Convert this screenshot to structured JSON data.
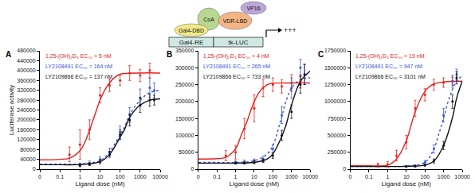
{
  "diagram": {
    "proteins": [
      "Gal4-DBD",
      "CoA",
      "VDR-LBD",
      "VP16"
    ],
    "elements": [
      "Gal4-RE",
      "tk-LUC"
    ],
    "output": "+++"
  },
  "chart_data": [
    {
      "type": "line",
      "title": "A",
      "xlabel": "Ligand dose (nM)",
      "ylabel": "Luciferase activity",
      "log": "x",
      "grid": false,
      "xlim": [
        0.01,
        10000
      ],
      "xticks": [
        {
          "value": 0.01,
          "label": "0"
        },
        0.1,
        1,
        10,
        100,
        1000,
        10000
      ],
      "ylim": [
        0,
        480000
      ],
      "yticks": [
        0,
        40000,
        80000,
        120000,
        160000,
        200000,
        240000,
        280000,
        320000,
        360000,
        400000,
        440000,
        480000
      ],
      "series": [
        {
          "type": "line",
          "name": "1,25-(OH)₂D₃",
          "ec50": "EC₅₀ = 5 nM",
          "color": "#e8201c",
          "line_style": "solid",
          "x": [
            0.01,
            0.1,
            0.3,
            1,
            2,
            5,
            10,
            20,
            50,
            100,
            1000,
            10000
          ],
          "values": [
            38000,
            40000,
            45000,
            75000,
            120000,
            210000,
            280000,
            330000,
            370000,
            385000,
            390000,
            390000
          ]
        },
        {
          "type": "line",
          "name": "LY2108491",
          "ec50": "EC₅₀ = 164 nM",
          "color": "#3a55d8",
          "line_style": "dot",
          "x": [
            0.01,
            0.1,
            1,
            10,
            30,
            100,
            164,
            300,
            1000,
            3000,
            10000
          ],
          "values": [
            20000,
            20000,
            21000,
            35000,
            70000,
            140000,
            170000,
            220000,
            280000,
            310000,
            320000
          ]
        },
        {
          "type": "line",
          "name": "LY2109866",
          "ec50": "EC₅₀ = 137 nM",
          "color": "#111111",
          "line_style": "solid",
          "x": [
            0.01,
            0.1,
            1,
            10,
            30,
            100,
            164,
            300,
            1000,
            3000,
            10000
          ],
          "values": [
            18000,
            18000,
            19000,
            30000,
            60000,
            130000,
            160000,
            210000,
            260000,
            280000,
            285000
          ]
        },
        {
          "type": "scatter",
          "color": "#e8201c",
          "marker": "circle",
          "x": [
            0.3,
            1,
            3,
            10,
            30,
            100,
            300,
            1000,
            3000
          ],
          "values": [
            60000,
            100000,
            160000,
            300000,
            340000,
            360000,
            390000,
            380000,
            400000
          ],
          "error": [
            30000,
            60000,
            40000,
            30000,
            25000,
            20000,
            30000,
            25000,
            30000
          ]
        },
        {
          "type": "scatter",
          "color": "#3a55d8",
          "marker": "circle",
          "x": [
            1,
            3,
            10,
            30,
            100,
            300,
            1000,
            3000,
            5000
          ],
          "values": [
            20000,
            25000,
            40000,
            70000,
            150000,
            220000,
            290000,
            330000,
            320000
          ],
          "error": [
            5000,
            8000,
            10000,
            15000,
            25000,
            30000,
            35000,
            40000,
            30000
          ]
        },
        {
          "type": "scatter",
          "color": "#111111",
          "marker": "circle",
          "x": [
            1,
            3,
            10,
            30,
            100,
            300,
            1000,
            3000,
            5000
          ],
          "values": [
            15000,
            20000,
            30000,
            60000,
            140000,
            200000,
            260000,
            280000,
            280000
          ],
          "error": [
            5000,
            5000,
            8000,
            12000,
            20000,
            25000,
            30000,
            25000,
            20000
          ]
        }
      ]
    },
    {
      "type": "line",
      "title": "B",
      "xlabel": "Ligand dose (nM)",
      "log": "x",
      "grid": false,
      "xlim": [
        0.01,
        10000
      ],
      "xticks": [
        {
          "value": 0.01,
          "label": "0"
        },
        0.1,
        1,
        10,
        100,
        1000,
        10000
      ],
      "ylim": [
        0,
        350000
      ],
      "yticks": [
        0,
        50000,
        100000,
        150000,
        200000,
        250000,
        300000,
        350000
      ],
      "series": [
        {
          "type": "line",
          "name": "1,25-(OH)₂D₃",
          "ec50": "EC₅₀ = 4 nM",
          "color": "#e8201c",
          "line_style": "solid",
          "x": [
            0.01,
            0.1,
            0.3,
            1,
            2,
            4,
            10,
            20,
            50,
            100,
            1000,
            10000
          ],
          "values": [
            30000,
            31000,
            35000,
            60000,
            100000,
            140000,
            200000,
            230000,
            250000,
            254000,
            255000,
            255000
          ]
        },
        {
          "type": "line",
          "name": "LY2108491",
          "ec50": "EC₅₀ = 265 nM",
          "color": "#3a55d8",
          "line_style": "dot",
          "x": [
            0.01,
            0.1,
            1,
            10,
            50,
            100,
            265,
            500,
            1000,
            3000,
            10000
          ],
          "values": [
            20000,
            20000,
            20000,
            25000,
            45000,
            70000,
            145000,
            200000,
            240000,
            265000,
            270000
          ]
        },
        {
          "type": "line",
          "name": "LY2109866",
          "ec50": "EC₅₀ = 733 nM",
          "color": "#111111",
          "line_style": "solid",
          "x": [
            0.01,
            0.1,
            1,
            10,
            50,
            100,
            265,
            500,
            1000,
            3000,
            10000
          ],
          "values": [
            18000,
            18000,
            18000,
            20000,
            30000,
            45000,
            90000,
            130000,
            190000,
            260000,
            290000
          ]
        },
        {
          "type": "scatter",
          "color": "#e8201c",
          "marker": "circle",
          "x": [
            0.3,
            1,
            3,
            10,
            30,
            100,
            300,
            1000,
            3000
          ],
          "values": [
            40000,
            50000,
            120000,
            180000,
            240000,
            250000,
            245000,
            255000,
            260000
          ],
          "error": [
            15000,
            20000,
            30000,
            40000,
            25000,
            20000,
            20000,
            25000,
            20000
          ]
        },
        {
          "type": "scatter",
          "color": "#3a55d8",
          "marker": "circle",
          "x": [
            1,
            3,
            10,
            30,
            100,
            300,
            1000,
            3000,
            5000
          ],
          "values": [
            20000,
            22000,
            25000,
            30000,
            60000,
            160000,
            240000,
            300000,
            280000
          ],
          "error": [
            4000,
            5000,
            5000,
            8000,
            12000,
            25000,
            30000,
            25000,
            30000
          ]
        },
        {
          "type": "scatter",
          "color": "#111111",
          "marker": "circle",
          "x": [
            1,
            3,
            10,
            30,
            100,
            300,
            1000,
            3000,
            5000
          ],
          "values": [
            18000,
            18000,
            20000,
            25000,
            40000,
            100000,
            170000,
            250000,
            280000
          ],
          "error": [
            3000,
            3000,
            4000,
            5000,
            8000,
            15000,
            20000,
            25000,
            30000
          ]
        }
      ]
    },
    {
      "type": "line",
      "title": "C",
      "xlabel": "Ligand dose (nM)",
      "log": "x",
      "grid": false,
      "xlim": [
        0.01,
        10000
      ],
      "xticks": [
        {
          "value": 0.01,
          "label": "0"
        },
        0.1,
        1,
        10,
        100,
        1000,
        10000
      ],
      "ylim": [
        0,
        1750000
      ],
      "yticks": [
        0,
        250000,
        500000,
        750000,
        1000000,
        1250000,
        1500000,
        1750000
      ],
      "series": [
        {
          "type": "line",
          "name": "1,25-(OH)₂D₃",
          "ec50": "EC₅₀ = 19 nM",
          "color": "#e8201c",
          "line_style": "solid",
          "x": [
            0.01,
            0.1,
            1,
            3,
            10,
            19,
            30,
            100,
            300,
            1000,
            10000
          ],
          "values": [
            50000,
            50000,
            60000,
            150000,
            420000,
            670000,
            850000,
            1150000,
            1260000,
            1290000,
            1300000
          ]
        },
        {
          "type": "line",
          "name": "LY2108491",
          "ec50": "EC₅₀ = 947 nM",
          "color": "#3a55d8",
          "line_style": "dot",
          "x": [
            0.01,
            0.1,
            1,
            10,
            100,
            300,
            600,
            947,
            2000,
            5000,
            10000
          ],
          "values": [
            40000,
            40000,
            40000,
            45000,
            100000,
            300000,
            550000,
            730000,
            1050000,
            1300000,
            1380000
          ]
        },
        {
          "type": "line",
          "name": "LY2109866",
          "ec50": "EC₅₀ = 3101 nM",
          "color": "#111111",
          "line_style": "solid",
          "x": [
            0.01,
            0.1,
            1,
            10,
            100,
            300,
            1000,
            3101,
            5000,
            10000
          ],
          "values": [
            40000,
            40000,
            40000,
            42000,
            60000,
            120000,
            350000,
            780000,
            1050000,
            1300000
          ]
        },
        {
          "type": "scatter",
          "color": "#e8201c",
          "marker": "circle",
          "x": [
            0.3,
            1,
            3,
            10,
            30,
            100,
            300,
            1000,
            3000
          ],
          "values": [
            60000,
            70000,
            200000,
            400000,
            900000,
            1100000,
            1250000,
            1280000,
            1300000
          ],
          "error": [
            30000,
            40000,
            80000,
            100000,
            120000,
            90000,
            80000,
            70000,
            60000
          ]
        },
        {
          "type": "scatter",
          "color": "#3a55d8",
          "marker": "circle",
          "x": [
            10,
            30,
            100,
            300,
            1000,
            3000,
            5000
          ],
          "values": [
            40000,
            50000,
            100000,
            300000,
            800000,
            1300000,
            1400000
          ],
          "error": [
            10000,
            15000,
            30000,
            60000,
            100000,
            90000,
            80000
          ]
        },
        {
          "type": "scatter",
          "color": "#111111",
          "marker": "circle",
          "x": [
            10,
            30,
            100,
            300,
            1000,
            3000,
            5000
          ],
          "values": [
            40000,
            45000,
            60000,
            120000,
            350000,
            1000000,
            1350000
          ],
          "error": [
            8000,
            10000,
            15000,
            30000,
            60000,
            100000,
            90000
          ]
        }
      ]
    }
  ]
}
